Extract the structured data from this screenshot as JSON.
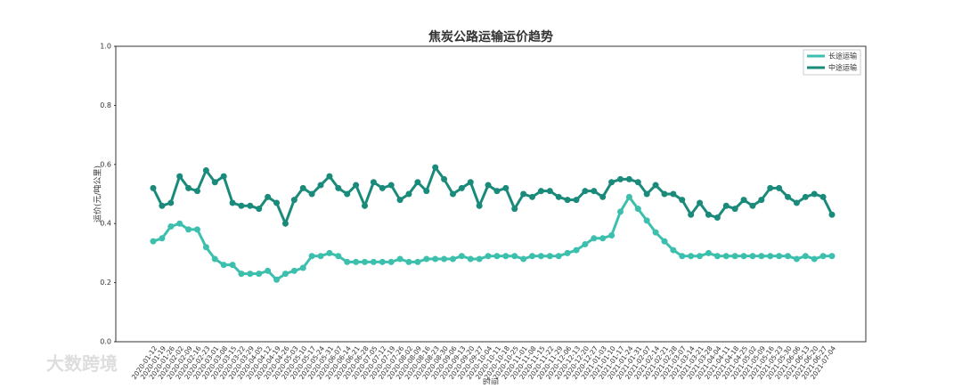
{
  "chart_data": {
    "type": "line",
    "title": "焦炭公路运输运价趋势",
    "x_label": "时间",
    "y_label": "运价(元/吨公里)",
    "watermark": "大数跨境",
    "categories": [
      "2020-01-12",
      "2020-01-19",
      "2020-01-26",
      "2020-02-02",
      "2020-02-09",
      "2020-02-16",
      "2020-02-23",
      "2020-03-01",
      "2020-03-08",
      "2020-03-15",
      "2020-03-22",
      "2020-03-29",
      "2020-04-05",
      "2020-04-12",
      "2020-04-19",
      "2020-04-26",
      "2020-05-03",
      "2020-05-10",
      "2020-05-17",
      "2020-05-24",
      "2020-05-31",
      "2020-06-07",
      "2020-06-14",
      "2020-06-21",
      "2020-06-28",
      "2020-07-05",
      "2020-07-12",
      "2020-07-19",
      "2020-07-26",
      "2020-08-02",
      "2020-08-09",
      "2020-08-16",
      "2020-08-23",
      "2020-08-30",
      "2020-09-06",
      "2020-09-13",
      "2020-09-20",
      "2020-09-27",
      "2020-10-04",
      "2020-10-11",
      "2020-10-18",
      "2020-10-25",
      "2020-11-01",
      "2020-11-08",
      "2020-11-15",
      "2020-11-22",
      "2020-11-29",
      "2020-12-06",
      "2020-12-13",
      "2020-12-20",
      "2020-12-27",
      "2021-01-03",
      "2021-01-10",
      "2021-01-17",
      "2021-01-24",
      "2021-01-31",
      "2021-02-07",
      "2021-02-14",
      "2021-02-21",
      "2021-02-28",
      "2021-03-07",
      "2021-03-14",
      "2021-03-21",
      "2021-03-28",
      "2021-04-04",
      "2021-04-11",
      "2021-04-18",
      "2021-04-25",
      "2021-05-02",
      "2021-05-09",
      "2021-05-16",
      "2021-05-23",
      "2021-05-30",
      "2021-06-06",
      "2021-06-13",
      "2021-06-20",
      "2021-06-27",
      "2021-07-04"
    ],
    "series": [
      {
        "name": "长途运输",
        "color": "#3dbfad",
        "values": [
          0.34,
          0.35,
          0.39,
          0.4,
          0.38,
          0.38,
          0.32,
          0.28,
          0.26,
          0.26,
          0.23,
          0.23,
          0.23,
          0.24,
          0.21,
          0.23,
          0.24,
          0.25,
          0.29,
          0.29,
          0.3,
          0.29,
          0.27,
          0.27,
          0.27,
          0.27,
          0.27,
          0.27,
          0.28,
          0.27,
          0.27,
          0.28,
          0.28,
          0.28,
          0.28,
          0.29,
          0.28,
          0.28,
          0.29,
          0.29,
          0.29,
          0.29,
          0.28,
          0.29,
          0.29,
          0.29,
          0.29,
          0.3,
          0.31,
          0.33,
          0.35,
          0.35,
          0.36,
          0.44,
          0.49,
          0.45,
          0.41,
          0.37,
          0.34,
          0.31,
          0.29,
          0.29,
          0.29,
          0.3,
          0.29,
          0.29,
          0.29,
          0.29,
          0.29,
          0.29,
          0.29,
          0.29,
          0.29,
          0.28,
          0.29,
          0.28,
          0.29,
          0.29
        ]
      },
      {
        "name": "中途运输",
        "color": "#1a8a7a",
        "values": [
          0.52,
          0.46,
          0.47,
          0.56,
          0.52,
          0.51,
          0.58,
          0.54,
          0.56,
          0.47,
          0.46,
          0.46,
          0.45,
          0.49,
          0.47,
          0.4,
          0.48,
          0.52,
          0.5,
          0.53,
          0.56,
          0.52,
          0.5,
          0.53,
          0.46,
          0.54,
          0.52,
          0.53,
          0.48,
          0.5,
          0.54,
          0.51,
          0.59,
          0.55,
          0.5,
          0.52,
          0.54,
          0.46,
          0.53,
          0.51,
          0.52,
          0.45,
          0.5,
          0.49,
          0.51,
          0.51,
          0.49,
          0.48,
          0.48,
          0.51,
          0.51,
          0.49,
          0.54,
          0.55,
          0.55,
          0.54,
          0.5,
          0.53,
          0.5,
          0.5,
          0.48,
          0.43,
          0.47,
          0.43,
          0.42,
          0.46,
          0.45,
          0.48,
          0.46,
          0.48,
          0.52,
          0.52,
          0.49,
          0.47,
          0.49,
          0.5,
          0.49,
          0.43
        ]
      }
    ],
    "ylim": [
      0,
      1
    ],
    "yticks": [
      {
        "value": 0,
        "label": "0.0"
      },
      0.2,
      0.4,
      0.6,
      0.8,
      {
        "value": 1,
        "label": "1.0"
      }
    ],
    "grid": false,
    "legend": "upper right"
  }
}
